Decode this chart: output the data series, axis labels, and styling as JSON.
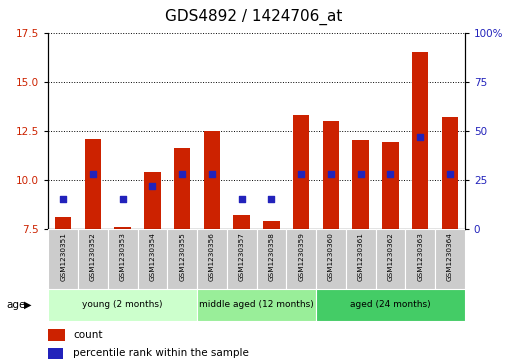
{
  "title": "GDS4892 / 1424706_at",
  "samples": [
    "GSM1230351",
    "GSM1230352",
    "GSM1230353",
    "GSM1230354",
    "GSM1230355",
    "GSM1230356",
    "GSM1230357",
    "GSM1230358",
    "GSM1230359",
    "GSM1230360",
    "GSM1230361",
    "GSM1230362",
    "GSM1230363",
    "GSM1230364"
  ],
  "counts": [
    8.1,
    12.1,
    7.6,
    10.4,
    11.6,
    12.5,
    8.2,
    7.9,
    13.3,
    13.0,
    12.0,
    11.9,
    16.5,
    13.2
  ],
  "percentiles": [
    15,
    28,
    15,
    22,
    28,
    28,
    15,
    15,
    28,
    28,
    28,
    28,
    47,
    28
  ],
  "ylim_left": [
    7.5,
    17.5
  ],
  "ylim_right": [
    0,
    100
  ],
  "yticks_left": [
    7.5,
    10.0,
    12.5,
    15.0,
    17.5
  ],
  "yticks_right": [
    0,
    25,
    50,
    75,
    100
  ],
  "bar_color": "#cc2200",
  "dot_color": "#2222bb",
  "bar_width": 0.55,
  "groups": [
    {
      "label": "young (2 months)",
      "start": 0,
      "end": 4,
      "color": "#ccffcc"
    },
    {
      "label": "middle aged (12 months)",
      "start": 5,
      "end": 8,
      "color": "#99ee99"
    },
    {
      "label": "aged (24 months)",
      "start": 9,
      "end": 13,
      "color": "#44cc66"
    }
  ],
  "age_label": "age",
  "legend_count_label": "count",
  "legend_percentile_label": "percentile rank within the sample",
  "title_fontsize": 11,
  "left_tick_color": "#cc2200",
  "right_tick_color": "#2222bb",
  "bg_color": "#ffffff",
  "sample_box_color": "#cccccc",
  "grid_color": "#000000"
}
